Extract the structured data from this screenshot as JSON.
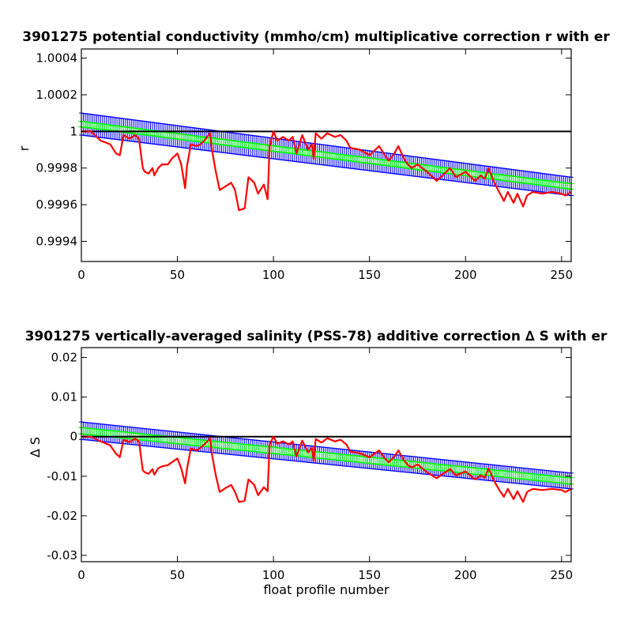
{
  "chart_data": [
    {
      "type": "line",
      "title": "3901275 potential conductivity (mmho/cm) multiplicative correction r with er",
      "xlabel": "",
      "ylabel": "r",
      "xlim": [
        0,
        255
      ],
      "ylim": [
        0.99929,
        1.00045
      ],
      "xticks": [
        0,
        50,
        100,
        150,
        200,
        250
      ],
      "xtick_labels": [
        "0",
        "50",
        "100",
        "150",
        "200",
        "250"
      ],
      "yticks": [
        0.9994,
        0.9996,
        0.9998,
        1.0,
        1.0002,
        1.0004
      ],
      "ytick_labels": [
        "0.9994",
        "0.9996",
        "0.9998",
        "1",
        "1.0002",
        "1.0004"
      ],
      "reference_line": 1.0,
      "series": [
        {
          "style": "error-bars",
          "color": "#0000ff",
          "x_range": [
            0,
            255
          ],
          "center_start": 1.00004,
          "center_end": 0.9997,
          "half_width_start": 6e-05,
          "half_width_end": 5e-05
        },
        {
          "style": "error-bars",
          "color": "#00ff00",
          "x_range": [
            0,
            255
          ],
          "center_start": 1.00004,
          "center_end": 0.9997,
          "half_width_start": 1.5e-05,
          "half_width_end": 1.5e-05
        },
        {
          "style": "line",
          "color": "#ff0000",
          "x": [
            0,
            5,
            10,
            15,
            18,
            20,
            22,
            25,
            28,
            30,
            32,
            33,
            35,
            37,
            38,
            40,
            42,
            45,
            47,
            50,
            52,
            54,
            55,
            57,
            60,
            62,
            64,
            67,
            68,
            70,
            72,
            75,
            78,
            80,
            82,
            85,
            87,
            90,
            92,
            95,
            97,
            98,
            100,
            102,
            105,
            108,
            110,
            112,
            115,
            118,
            120,
            121,
            122,
            125,
            128,
            130,
            132,
            135,
            138,
            140,
            145,
            150,
            155,
            158,
            160,
            163,
            165,
            168,
            170,
            172,
            175,
            180,
            185,
            190,
            192,
            195,
            200,
            205,
            208,
            210,
            212,
            215,
            218,
            220,
            222,
            225,
            227,
            230,
            232,
            235,
            240,
            245,
            250,
            252,
            255
          ],
          "y": [
            1.0,
            1.0,
            0.99995,
            0.99993,
            0.99988,
            0.99987,
            0.99998,
            0.99996,
            0.99998,
            0.99996,
            0.9998,
            0.99978,
            0.99977,
            0.9998,
            0.99976,
            0.9998,
            0.99982,
            0.99982,
            0.99985,
            0.99988,
            0.99982,
            0.99969,
            0.99981,
            0.99993,
            0.99992,
            0.99993,
            0.99995,
            0.99999,
            0.9999,
            0.99978,
            0.99968,
            0.9997,
            0.99972,
            0.99968,
            0.99957,
            0.99958,
            0.99975,
            0.99972,
            0.99966,
            0.99971,
            0.99963,
            0.99992,
            1.0,
            0.99995,
            0.99997,
            0.99995,
            0.99997,
            0.99988,
            0.99998,
            0.9999,
            0.99993,
            0.99985,
            0.99999,
            0.99996,
            0.99999,
            0.99998,
            0.99997,
            0.99998,
            0.99995,
            0.99991,
            0.9999,
            0.99987,
            0.99992,
            0.99987,
            0.99984,
            0.99988,
            0.99992,
            0.99985,
            0.99982,
            0.9998,
            0.99982,
            0.99978,
            0.99973,
            0.99978,
            0.9998,
            0.99975,
            0.99978,
            0.99973,
            0.99976,
            0.99974,
            0.9998,
            0.99972,
            0.99966,
            0.99962,
            0.99967,
            0.99961,
            0.99966,
            0.99959,
            0.99965,
            0.99967,
            0.99966,
            0.99967,
            0.99966,
            0.99965,
            0.99967
          ]
        }
      ]
    },
    {
      "type": "line",
      "title": "3901275 vertically-averaged salinity (PSS-78) additive correction ∆ S with er",
      "xlabel": "float profile number",
      "ylabel": "∆ S",
      "xlim": [
        0,
        255
      ],
      "ylim": [
        -0.0316,
        0.0225
      ],
      "xticks": [
        0,
        50,
        100,
        150,
        200,
        250
      ],
      "xtick_labels": [
        "0",
        "50",
        "100",
        "150",
        "200",
        "250"
      ],
      "yticks": [
        -0.03,
        -0.02,
        -0.01,
        0,
        0.01,
        0.02
      ],
      "ytick_labels": [
        "-0.03",
        "-0.02",
        "-0.01",
        "0",
        "0.01",
        "0.02"
      ],
      "reference_line": 0,
      "series": [
        {
          "style": "error-bars",
          "color": "#0000ff",
          "x_range": [
            0,
            255
          ],
          "center_start": 0.0015,
          "center_end": -0.0112,
          "half_width_start": 0.0022,
          "half_width_end": 0.002
        },
        {
          "style": "error-bars",
          "color": "#00ff00",
          "x_range": [
            0,
            255
          ],
          "center_start": 0.0015,
          "center_end": -0.0112,
          "half_width_start": 0.0008,
          "half_width_end": 0.0008
        },
        {
          "style": "line",
          "color": "#ff0000",
          "x": [
            0,
            5,
            10,
            15,
            18,
            20,
            22,
            25,
            28,
            30,
            32,
            33,
            35,
            37,
            38,
            40,
            42,
            45,
            47,
            50,
            52,
            54,
            55,
            57,
            60,
            62,
            64,
            67,
            68,
            70,
            72,
            75,
            78,
            80,
            82,
            85,
            87,
            90,
            92,
            95,
            97,
            98,
            100,
            102,
            105,
            108,
            110,
            112,
            115,
            118,
            120,
            121,
            122,
            125,
            128,
            130,
            132,
            135,
            138,
            140,
            145,
            150,
            155,
            158,
            160,
            163,
            165,
            168,
            170,
            172,
            175,
            180,
            185,
            190,
            192,
            195,
            200,
            205,
            208,
            210,
            212,
            215,
            218,
            220,
            222,
            225,
            227,
            230,
            232,
            235,
            240,
            245,
            250,
            252,
            255
          ],
          "y": [
            0.0,
            0.0,
            -0.0012,
            -0.0022,
            -0.0043,
            -0.0052,
            -0.0008,
            -0.0014,
            -0.0005,
            -0.0012,
            -0.0085,
            -0.009,
            -0.0094,
            -0.0082,
            -0.0096,
            -0.008,
            -0.0075,
            -0.0072,
            -0.0065,
            -0.0055,
            -0.008,
            -0.0118,
            -0.0082,
            -0.003,
            -0.0035,
            -0.0028,
            -0.002,
            -0.0004,
            -0.0045,
            -0.0098,
            -0.014,
            -0.013,
            -0.0122,
            -0.014,
            -0.0165,
            -0.0162,
            -0.0108,
            -0.0122,
            -0.0148,
            -0.0128,
            -0.0138,
            -0.002,
            0.0,
            -0.0018,
            -0.0012,
            -0.002,
            -0.0012,
            -0.005,
            -0.001,
            -0.004,
            -0.0028,
            -0.0062,
            -0.0006,
            -0.0015,
            -0.0004,
            -0.0008,
            -0.0012,
            -0.0008,
            -0.002,
            -0.0038,
            -0.0042,
            -0.0052,
            -0.0035,
            -0.0055,
            -0.0065,
            -0.005,
            -0.0035,
            -0.006,
            -0.0072,
            -0.0078,
            -0.007,
            -0.009,
            -0.0105,
            -0.0088,
            -0.0082,
            -0.0098,
            -0.0088,
            -0.0108,
            -0.0098,
            -0.0104,
            -0.008,
            -0.0113,
            -0.0138,
            -0.0152,
            -0.0132,
            -0.0158,
            -0.0138,
            -0.0165,
            -0.014,
            -0.0132,
            -0.0135,
            -0.0132,
            -0.0135,
            -0.014,
            -0.0132
          ]
        }
      ]
    }
  ]
}
